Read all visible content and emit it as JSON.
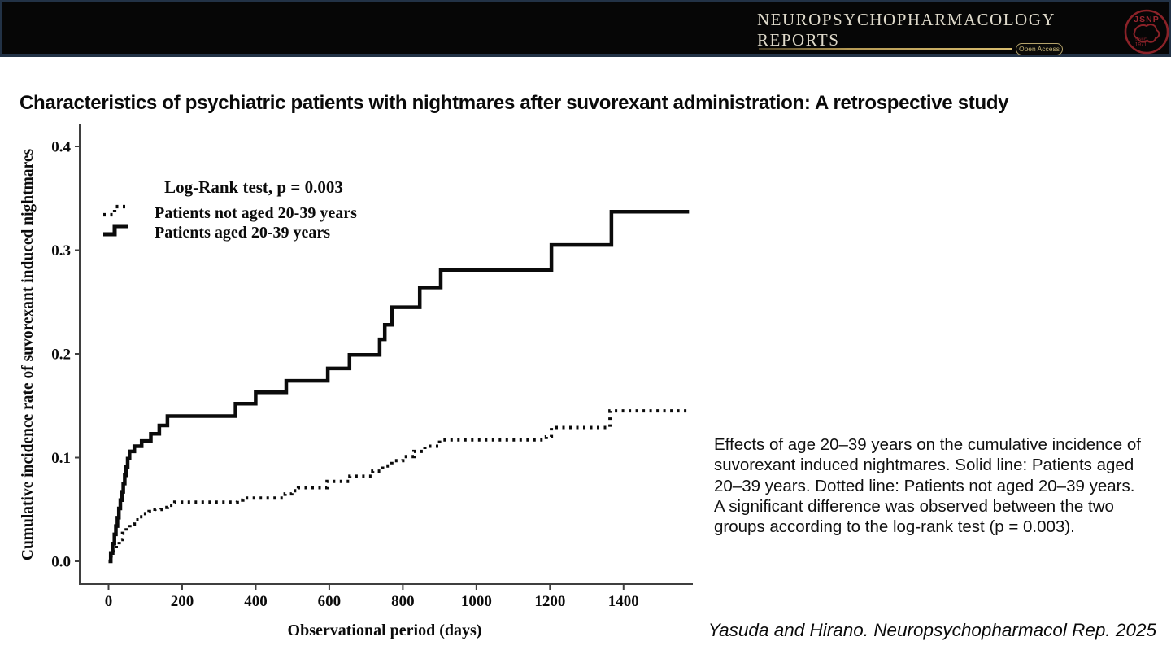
{
  "header": {
    "journal_line1": "NEUROPSYCHOPHARMACOLOGY",
    "journal_line2": "REPORTS",
    "open_access_label": "Open Access",
    "logo": {
      "acronym": "JSNP",
      "since_word": "SINCE",
      "since_year": "1971"
    },
    "colors": {
      "bar_bg": "#060606",
      "border_blue": "#223246",
      "gold": "#c9ad62",
      "logo_red": "#9b2630",
      "journal_text": "#ded9ca"
    }
  },
  "title": "Characteristics of psychiatric patients with nightmares after suvorexant administration: A retrospective study",
  "chart_data": {
    "type": "line",
    "subtype": "kaplan-meier-cumulative-incidence-steps",
    "title": "",
    "xlabel": "Observational period (days)",
    "ylabel": "Cumulative incidence rate of suvorexant induced nightmares",
    "annotation": "Log-Rank test, p = 0.003",
    "xlim": [
      0,
      1590
    ],
    "ylim": [
      0,
      0.42
    ],
    "xticks": [
      0,
      200,
      400,
      600,
      800,
      1000,
      1200,
      1400
    ],
    "yticks": [
      0.0,
      0.1,
      0.2,
      0.3,
      0.4
    ],
    "grid": false,
    "legend_position": "upper-left-inside",
    "legend": [
      {
        "label": "Patients not aged 20-39 years",
        "style": "dotted"
      },
      {
        "label": "Patients aged 20-39 years",
        "style": "solid"
      }
    ],
    "series": [
      {
        "name": "Patients aged 20-39 years",
        "style": "solid",
        "color": "#0b0b0b",
        "end_x": 1578,
        "points": [
          [
            0,
            0
          ],
          [
            6,
            0.008
          ],
          [
            11,
            0.017
          ],
          [
            16,
            0.026
          ],
          [
            20,
            0.034
          ],
          [
            24,
            0.042
          ],
          [
            28,
            0.051
          ],
          [
            32,
            0.059
          ],
          [
            36,
            0.067
          ],
          [
            40,
            0.075
          ],
          [
            44,
            0.083
          ],
          [
            48,
            0.091
          ],
          [
            52,
            0.099
          ],
          [
            57,
            0.106
          ],
          [
            70,
            0.111
          ],
          [
            90,
            0.116
          ],
          [
            115,
            0.123
          ],
          [
            138,
            0.131
          ],
          [
            160,
            0.14
          ],
          [
            345,
            0.152
          ],
          [
            400,
            0.163
          ],
          [
            483,
            0.174
          ],
          [
            596,
            0.186
          ],
          [
            655,
            0.199
          ],
          [
            737,
            0.214
          ],
          [
            751,
            0.228
          ],
          [
            770,
            0.245
          ],
          [
            846,
            0.264
          ],
          [
            903,
            0.281
          ],
          [
            1204,
            0.305
          ],
          [
            1367,
            0.337
          ]
        ]
      },
      {
        "name": "Patients not aged 20-39 years",
        "style": "dotted",
        "color": "#0b0b0b",
        "end_x": 1572,
        "points": [
          [
            0,
            0
          ],
          [
            7,
            0.005
          ],
          [
            14,
            0.011
          ],
          [
            21,
            0.016
          ],
          [
            29,
            0.021
          ],
          [
            38,
            0.027
          ],
          [
            48,
            0.032
          ],
          [
            58,
            0.036
          ],
          [
            70,
            0.04
          ],
          [
            82,
            0.043
          ],
          [
            95,
            0.046
          ],
          [
            110,
            0.048
          ],
          [
            126,
            0.05
          ],
          [
            143,
            0.052
          ],
          [
            160,
            0.054
          ],
          [
            180,
            0.057
          ],
          [
            350,
            0.059
          ],
          [
            365,
            0.061
          ],
          [
            480,
            0.065
          ],
          [
            498,
            0.068
          ],
          [
            516,
            0.071
          ],
          [
            594,
            0.077
          ],
          [
            656,
            0.082
          ],
          [
            718,
            0.087
          ],
          [
            745,
            0.092
          ],
          [
            770,
            0.097
          ],
          [
            800,
            0.101
          ],
          [
            830,
            0.106
          ],
          [
            860,
            0.111
          ],
          [
            900,
            0.117
          ],
          [
            1190,
            0.12
          ],
          [
            1204,
            0.129
          ],
          [
            1363,
            0.145
          ]
        ]
      }
    ]
  },
  "caption": {
    "lines": [
      "Effects of age 20–39 years on the cumulative incidence of",
      "suvorexant induced nightmares. Solid line: Patients aged",
      "20–39 years. Dotted line: Patients not aged 20–39 years.",
      "A significant difference was observed between the two",
      "groups according to the log-rank test (p = 0.003)."
    ]
  },
  "footer_citation": "Yasuda and Hirano. Neuropsychopharmacol Rep. 2025"
}
